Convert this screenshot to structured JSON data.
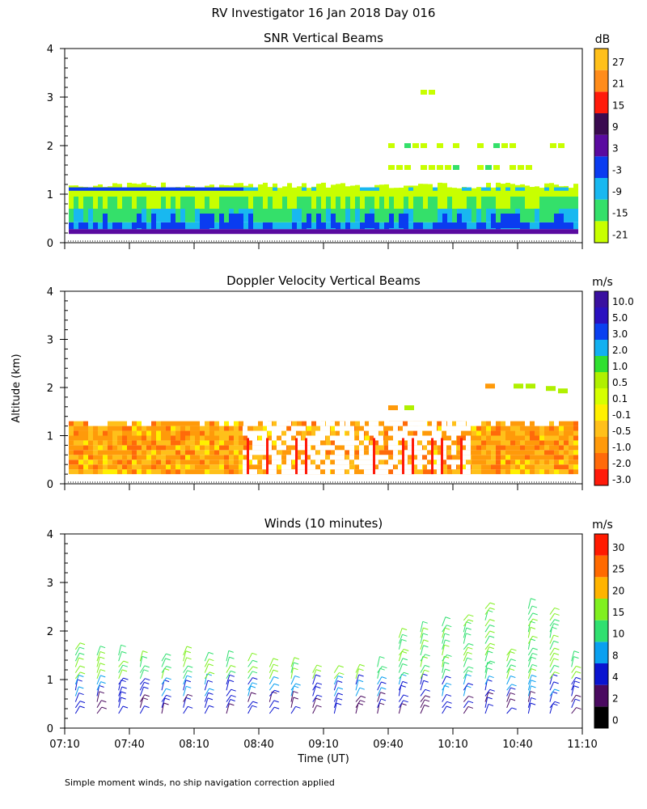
{
  "title": "RV Investigator  16 Jan 2018 Day 016",
  "ylabel": "Altitude (km)",
  "xlabel": "Time (UT)",
  "footnote": "Simple moment winds, no ship navigation correction applied",
  "colors": {
    "snr": [
      "#c8ff00",
      "#34e06a",
      "#18b8f0",
      "#0a3cf0",
      "#5a0aa0",
      "#3a0a50",
      "#ff1a0a",
      "#ff8c1a",
      "#ffc01a"
    ],
    "vel": [
      "#ff1a0a",
      "#ff6a0a",
      "#ff9a0a",
      "#ffc01a",
      "#fff000",
      "#d6ff00",
      "#b0f000",
      "#30e030",
      "#12b0f0",
      "#0a40f0",
      "#2a10c0",
      "#3a10a0",
      "#2a0a40"
    ],
    "wind": [
      "#000000",
      "#4a0a60",
      "#0a14d0",
      "#0aa0f0",
      "#30e070",
      "#80f020",
      "#ffb400",
      "#ff6a00",
      "#ff1a00"
    ]
  },
  "chart_data": [
    {
      "type": "heatmap",
      "title": "SNR Vertical Beams",
      "units": "dB",
      "x": [
        "07:10",
        "07:40",
        "08:10",
        "08:40",
        "09:10",
        "09:40",
        "10:10",
        "10:40",
        "11:10"
      ],
      "xlim": [
        "07:10",
        "11:10"
      ],
      "ylim": [
        0,
        4
      ],
      "yticks": [
        "0",
        "1",
        "2",
        "3",
        "4"
      ],
      "colorbar_ticks": [
        "27",
        "21",
        "15",
        "9",
        "3",
        "-3",
        "-9",
        "-15",
        "-21"
      ],
      "profile_summary": [
        {
          "altitude_km": 0.25,
          "snr_db": 3
        },
        {
          "altitude_km": 0.45,
          "snr_db": -3
        },
        {
          "altitude_km": 0.65,
          "snr_db": -9
        },
        {
          "altitude_km": 0.85,
          "snr_db": -15
        },
        {
          "altitude_km": 1.05,
          "snr_db": -21
        },
        {
          "altitude_km": 1.15,
          "snr_db": -3
        }
      ],
      "elevated_layers": [
        {
          "start": "09:40",
          "end": "11:05",
          "altitude_km": 2.0,
          "snr_db": -18
        },
        {
          "start": "09:40",
          "end": "10:45",
          "altitude_km": 1.55,
          "snr_db": -18
        },
        {
          "start": "09:55",
          "end": "10:00",
          "altitude_km": 3.1,
          "snr_db": -21
        }
      ]
    },
    {
      "type": "heatmap",
      "title": "Doppler Velocity Vertical Beams",
      "units": "m/s",
      "x": [
        "07:10",
        "07:40",
        "08:10",
        "08:40",
        "09:10",
        "09:40",
        "10:10",
        "10:40",
        "11:10"
      ],
      "xlim": [
        "07:10",
        "11:10"
      ],
      "ylim": [
        0,
        4
      ],
      "yticks": [
        "0",
        "1",
        "2",
        "3",
        "4"
      ],
      "colorbar_ticks": [
        "10.0",
        "5.0",
        "3.0",
        "2.0",
        "1.0",
        "0.5",
        "0.1",
        "-0.1",
        "-0.5",
        "-1.0",
        "-2.0",
        "-3.0"
      ],
      "profile_summary": [
        {
          "altitude_km": 0.25,
          "velocity_ms": -1.0
        },
        {
          "altitude_km": 0.55,
          "velocity_ms": -0.5
        },
        {
          "altitude_km": 0.85,
          "velocity_ms": -0.5
        },
        {
          "altitude_km": 1.15,
          "velocity_ms": -0.1
        }
      ]
    },
    {
      "type": "wind_barbs",
      "title": "Winds (10 minutes)",
      "units": "m/s",
      "x": [
        "07:10",
        "07:40",
        "08:10",
        "08:40",
        "09:10",
        "09:40",
        "10:10",
        "10:40",
        "11:10"
      ],
      "xlim": [
        "07:10",
        "11:10"
      ],
      "ylim": [
        0,
        4
      ],
      "yticks": [
        "0",
        "1",
        "2",
        "3",
        "4"
      ],
      "colorbar_ticks": [
        "30",
        "25",
        "20",
        "15",
        "10",
        "8",
        "4",
        "2",
        "0"
      ],
      "profiles": [
        {
          "time": "07:15",
          "top_km": 1.7
        },
        {
          "time": "07:25",
          "top_km": 1.6
        },
        {
          "time": "07:35",
          "top_km": 1.6
        },
        {
          "time": "07:45",
          "top_km": 1.5
        },
        {
          "time": "07:55",
          "top_km": 1.5
        },
        {
          "time": "08:05",
          "top_km": 1.6
        },
        {
          "time": "08:15",
          "top_km": 1.5
        },
        {
          "time": "08:25",
          "top_km": 1.4
        },
        {
          "time": "08:35",
          "top_km": 1.4
        },
        {
          "time": "08:45",
          "top_km": 1.3
        },
        {
          "time": "08:55",
          "top_km": 1.3
        },
        {
          "time": "09:05",
          "top_km": 1.2
        },
        {
          "time": "09:15",
          "top_km": 1.2
        },
        {
          "time": "09:25",
          "top_km": 1.2
        },
        {
          "time": "09:35",
          "top_km": 1.3
        },
        {
          "time": "09:45",
          "top_km": 1.9
        },
        {
          "time": "09:55",
          "top_km": 2.1
        },
        {
          "time": "10:05",
          "top_km": 2.2
        },
        {
          "time": "10:15",
          "top_km": 2.3
        },
        {
          "time": "10:25",
          "top_km": 2.5
        },
        {
          "time": "10:35",
          "top_km": 1.6
        },
        {
          "time": "10:45",
          "top_km": 2.5
        },
        {
          "time": "10:55",
          "top_km": 2.4
        },
        {
          "time": "11:05",
          "top_km": 1.4
        }
      ]
    }
  ]
}
